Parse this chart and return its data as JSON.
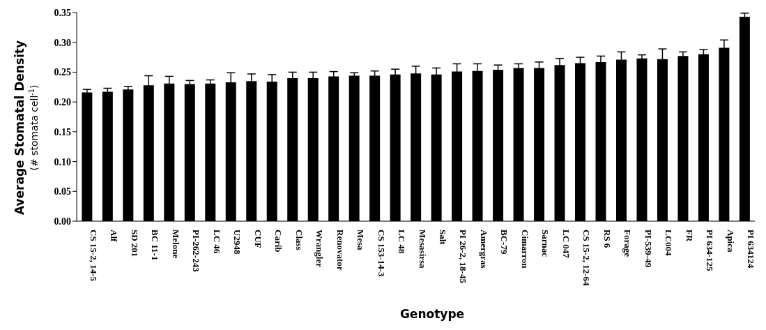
{
  "chart_data": {
    "type": "bar",
    "xlabel": "Genotype",
    "ylabel": "Average Stomatal Density\n(# stomata cell$^{-1}$)",
    "categories": [
      "CS 15-2, 14-5",
      "Alf",
      "SD 201",
      "BC 11-1",
      "Melone",
      "PI-262-243",
      "LC 46",
      "U2948",
      "CUF",
      "Carib",
      "Class",
      "Wrangler",
      "Renovator",
      "Mesa",
      "CS 153-14-3",
      "LC 48",
      "Mesasirsa",
      "Salt",
      "PI 26-2, 18-45",
      "Amergras",
      "BC-79",
      "Cimarron",
      "Sarnac",
      "LC 047",
      "CS 15-2, 12-64",
      "RS 6",
      "Forage",
      "PI-539-49",
      "LC004",
      "FR",
      "PI 634-125",
      "Apica",
      "PI 634124"
    ],
    "values": [
      0.216,
      0.217,
      0.221,
      0.228,
      0.231,
      0.23,
      0.231,
      0.233,
      0.235,
      0.234,
      0.24,
      0.24,
      0.243,
      0.244,
      0.244,
      0.246,
      0.248,
      0.246,
      0.251,
      0.252,
      0.254,
      0.257,
      0.257,
      0.262,
      0.265,
      0.267,
      0.271,
      0.273,
      0.272,
      0.277,
      0.28,
      0.291,
      0.343
    ],
    "errors": [
      0.005,
      0.006,
      0.005,
      0.016,
      0.012,
      0.006,
      0.006,
      0.016,
      0.012,
      0.012,
      0.01,
      0.01,
      0.008,
      0.005,
      0.008,
      0.009,
      0.012,
      0.011,
      0.013,
      0.012,
      0.008,
      0.007,
      0.01,
      0.011,
      0.01,
      0.01,
      0.013,
      0.006,
      0.017,
      0.007,
      0.008,
      0.013,
      0.006
    ],
    "color": "#000000",
    "ylim": [
      0,
      0.35
    ],
    "yticks": [
      {
        "value": 0,
        "label": "0.00"
      },
      0.05,
      {
        "value": 0.1,
        "label": "0.10"
      },
      0.15,
      {
        "value": 0.2,
        "label": "0.20"
      },
      0.25,
      {
        "value": 0.3,
        "label": "0.30"
      },
      0.35
    ],
    "grid": false,
    "legend": false
  }
}
